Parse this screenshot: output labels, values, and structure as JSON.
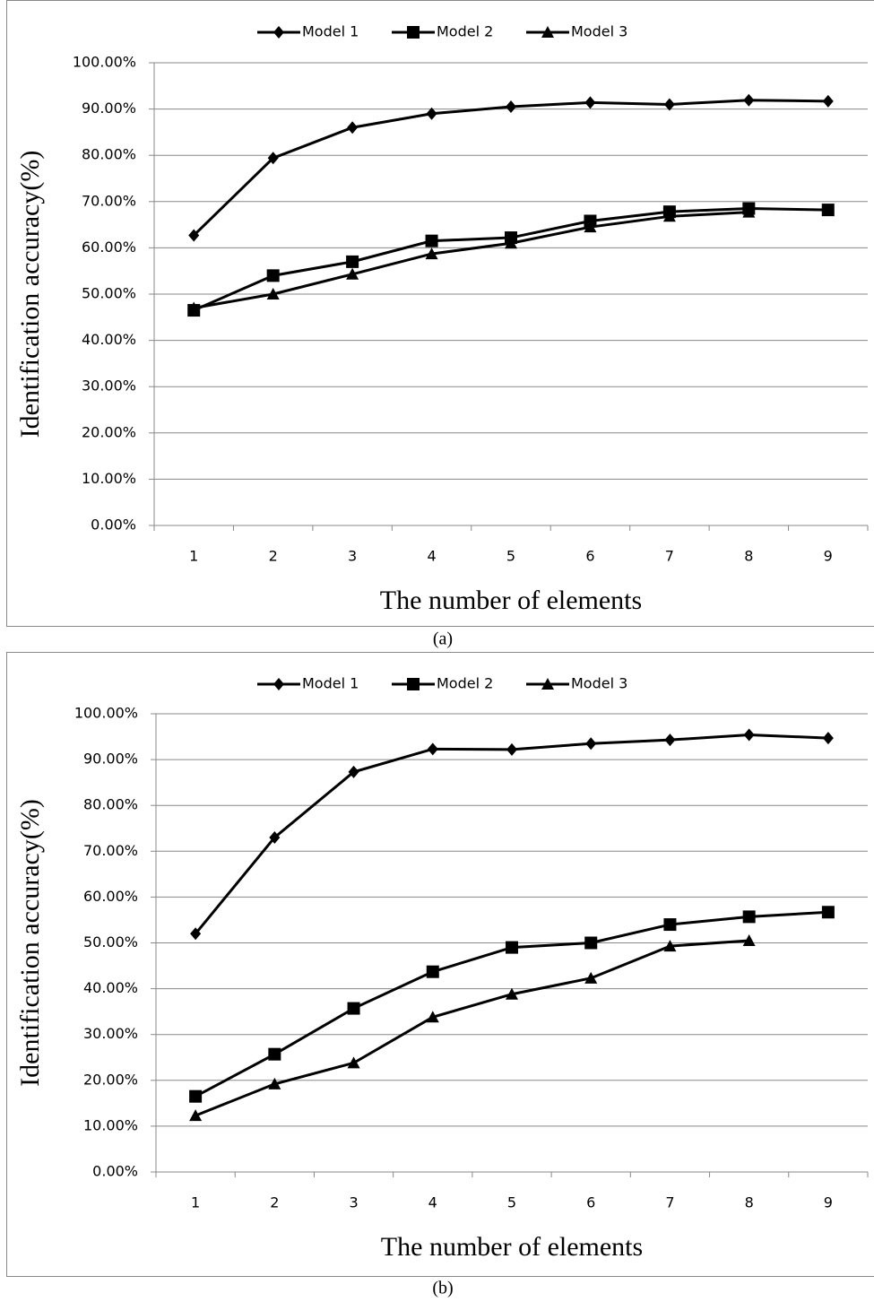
{
  "chart_data": [
    {
      "type": "line",
      "caption": "(a)",
      "xlabel": "The number of elements",
      "ylabel": "Identification accuracy(%)",
      "categories": [
        "1",
        "2",
        "3",
        "4",
        "5",
        "6",
        "7",
        "8",
        "9"
      ],
      "ylim": [
        0,
        100
      ],
      "yticks": [
        {
          "value": 0,
          "label": "0.00%"
        },
        {
          "value": 10,
          "label": "10.00%"
        },
        {
          "value": 20,
          "label": "20.00%"
        },
        {
          "value": 30,
          "label": "30.00%"
        },
        {
          "value": 40,
          "label": "40.00%"
        },
        {
          "value": 50,
          "label": "50.00%"
        },
        {
          "value": 60,
          "label": "60.00%"
        },
        {
          "value": 70,
          "label": "70.00%"
        },
        {
          "value": 80,
          "label": "80.00%"
        },
        {
          "value": 90,
          "label": "90.00%"
        },
        {
          "value": 100,
          "label": "100.00%"
        }
      ],
      "grid": true,
      "legend": "top",
      "series": [
        {
          "name": "Model 1",
          "color": "#000000",
          "marker": "diamond",
          "values": [
            62.7,
            79.4,
            86,
            89,
            90.5,
            91.4,
            91,
            91.9,
            91.7
          ]
        },
        {
          "name": "Model 2",
          "color": "#000000",
          "marker": "square",
          "values": [
            46.5,
            54,
            57,
            61.5,
            62.2,
            65.8,
            67.8,
            68.5,
            68.2
          ]
        },
        {
          "name": "Model 3",
          "color": "#000000",
          "marker": "triangle",
          "values": [
            47,
            50,
            54.3,
            58.7,
            61,
            64.5,
            66.8,
            67.7,
            null
          ]
        }
      ]
    },
    {
      "type": "line",
      "caption": "(b)",
      "xlabel": "The number of elements",
      "ylabel": "Identification accuracy(%)",
      "categories": [
        "1",
        "2",
        "3",
        "4",
        "5",
        "6",
        "7",
        "8",
        "9"
      ],
      "ylim": [
        0,
        100
      ],
      "yticks": [
        {
          "value": 0,
          "label": "0.00%"
        },
        {
          "value": 10,
          "label": "10.00%"
        },
        {
          "value": 20,
          "label": "20.00%"
        },
        {
          "value": 30,
          "label": "30.00%"
        },
        {
          "value": 40,
          "label": "40.00%"
        },
        {
          "value": 50,
          "label": "50.00%"
        },
        {
          "value": 60,
          "label": "60.00%"
        },
        {
          "value": 70,
          "label": "70.00%"
        },
        {
          "value": 80,
          "label": "80.00%"
        },
        {
          "value": 90,
          "label": "90.00%"
        },
        {
          "value": 100,
          "label": "100.00%"
        }
      ],
      "grid": true,
      "legend": "top",
      "series": [
        {
          "name": "Model 1",
          "color": "#000000",
          "marker": "diamond",
          "values": [
            52,
            73,
            87.3,
            92.3,
            92.2,
            93.5,
            94.3,
            95.4,
            94.7
          ]
        },
        {
          "name": "Model 2",
          "color": "#000000",
          "marker": "square",
          "values": [
            16.5,
            25.7,
            35.7,
            43.7,
            49,
            50,
            54,
            55.7,
            56.7
          ]
        },
        {
          "name": "Model 3",
          "color": "#000000",
          "marker": "triangle",
          "values": [
            12.3,
            19.2,
            23.8,
            33.8,
            38.8,
            42.3,
            49.3,
            50.5,
            null
          ]
        }
      ]
    }
  ]
}
